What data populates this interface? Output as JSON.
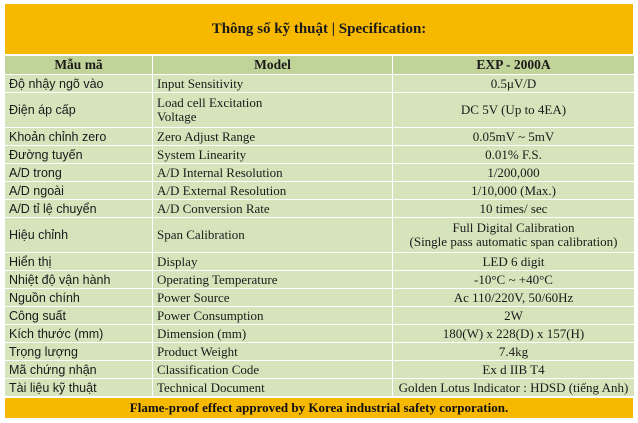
{
  "title": "Thông số kỹ thuật | Specification:",
  "header": {
    "col1": "Mẫu mã",
    "col2": "Model",
    "col3": "EXP - 2000A"
  },
  "rows": [
    {
      "vi": "Độ nhậy ngõ vào",
      "en": [
        "Input Sensitivity"
      ],
      "val": [
        "0.5μV/D"
      ]
    },
    {
      "vi": "Điện áp cấp",
      "en": [
        "Load cell Excitation",
        "Voltage"
      ],
      "val": [
        "DC 5V (Up to 4EA)"
      ]
    },
    {
      "vi": "Khoản chỉnh zero",
      "en": [
        "Zero Adjust Range"
      ],
      "val": [
        "0.05mV ~ 5mV"
      ]
    },
    {
      "vi": "Đường tuyến",
      "en": [
        "System Linearity"
      ],
      "val": [
        "0.01% F.S."
      ]
    },
    {
      "vi": "A/D trong",
      "en": [
        "A/D Internal Resolution"
      ],
      "val": [
        "1/200,000"
      ]
    },
    {
      "vi": "A/D ngoài",
      "en": [
        "A/D External Resolution"
      ],
      "val": [
        "1/10,000 (Max.)"
      ]
    },
    {
      "vi": "A/D tỉ lệ chuyển",
      "en": [
        "A/D Conversion Rate"
      ],
      "val": [
        "10 times/ sec"
      ]
    },
    {
      "vi": "Hiệu chỉnh",
      "en": [
        "Span Calibration"
      ],
      "val": [
        "Full Digital Calibration",
        "(Single pass automatic span calibration)"
      ]
    },
    {
      "vi": "Hiển thị",
      "en": [
        "Display"
      ],
      "val": [
        "LED 6 digit"
      ]
    },
    {
      "vi": "Nhiệt độ vận hành",
      "en": [
        "Operating Temperature"
      ],
      "val": [
        "-10°C ~ +40°C"
      ]
    },
    {
      "vi": "Nguồn chính",
      "en": [
        "Power Source"
      ],
      "val": [
        "Ac 110/220V, 50/60Hz"
      ]
    },
    {
      "vi": "Công suất",
      "en": [
        "Power Consumption"
      ],
      "val": [
        "2W"
      ]
    },
    {
      "vi": "Kích thước (mm)",
      "en": [
        "Dimension (mm)"
      ],
      "val": [
        "180(W) x 228(D) x 157(H)"
      ]
    },
    {
      "vi": "Trọng lượng",
      "en": [
        "Product Weight"
      ],
      "val": [
        "7.4kg"
      ]
    },
    {
      "vi": "Mã chứng nhận",
      "en": [
        "Classification Code"
      ],
      "val": [
        "Ex d IIB T4"
      ]
    },
    {
      "vi": "Tài liệu kỹ thuật",
      "en": [
        "Technical Document"
      ],
      "val": [
        "Golden Lotus Indicator : HDSD (tiếng Anh)"
      ]
    }
  ],
  "footer": "Flame-proof effect approved by Korea industrial safety corporation."
}
